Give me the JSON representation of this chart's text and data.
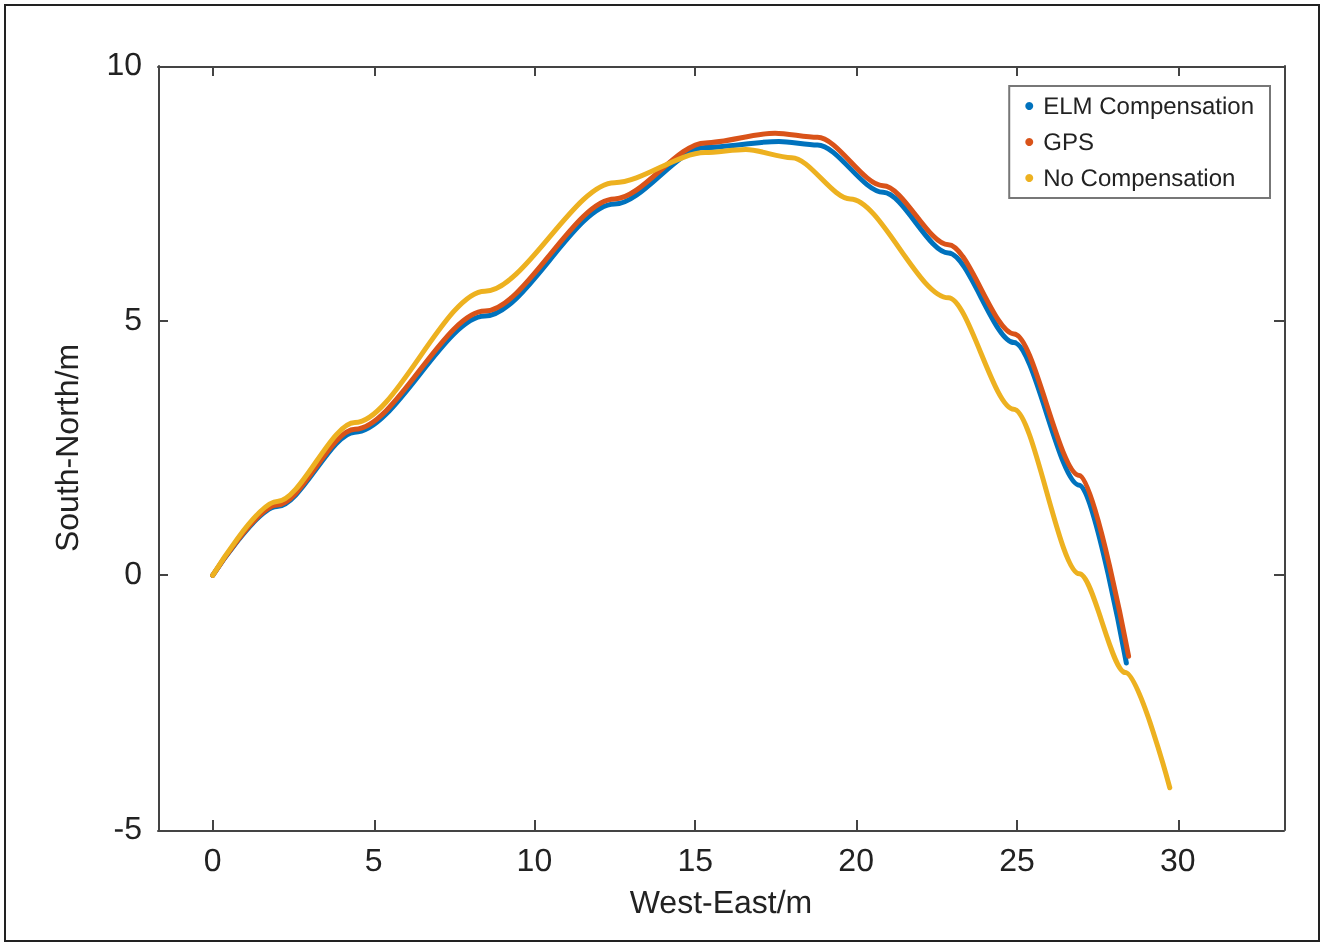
{
  "chart_data": {
    "type": "line",
    "xlabel": "West-East/m",
    "ylabel": "South-North/m",
    "xlim": [
      -1.7,
      33.3
    ],
    "xticks": [
      0,
      5,
      10,
      15,
      20,
      25,
      30
    ],
    "ylim": [
      -5,
      10
    ],
    "yticks": [
      -5,
      0,
      5,
      10
    ],
    "legend": "top right",
    "grid": false,
    "series": [
      {
        "name": "ELM Compensation",
        "color": "#0072bd",
        "x": [
          0,
          2,
          4.42,
          8.46,
          12.49,
          15.31,
          17.6,
          18.8,
          20.84,
          22.87,
          24.91,
          26.94,
          28.4
        ],
        "values": [
          0,
          1.35,
          2.81,
          5.09,
          7.29,
          8.4,
          8.52,
          8.45,
          7.52,
          6.33,
          4.57,
          1.77,
          -1.72
        ]
      },
      {
        "name": "GPS",
        "color": "#d95319",
        "x": [
          0,
          2,
          4.42,
          8.46,
          12.49,
          15.31,
          17.48,
          18.8,
          20.84,
          22.87,
          24.91,
          26.94,
          28.47
        ],
        "values": [
          0,
          1.38,
          2.87,
          5.19,
          7.39,
          8.49,
          8.68,
          8.6,
          7.65,
          6.49,
          4.74,
          1.96,
          -1.59
        ]
      },
      {
        "name": "No Compensation",
        "color": "#edb120",
        "x": [
          0,
          2,
          4.42,
          8.46,
          12.49,
          15.31,
          16.57,
          18,
          19.82,
          22.87,
          24.9,
          26.94,
          28.37,
          29.75
        ],
        "values": [
          0,
          1.45,
          3.0,
          5.58,
          7.71,
          8.3,
          8.36,
          8.2,
          7.39,
          5.45,
          3.26,
          0.03,
          -1.91,
          -4.17
        ]
      }
    ]
  }
}
